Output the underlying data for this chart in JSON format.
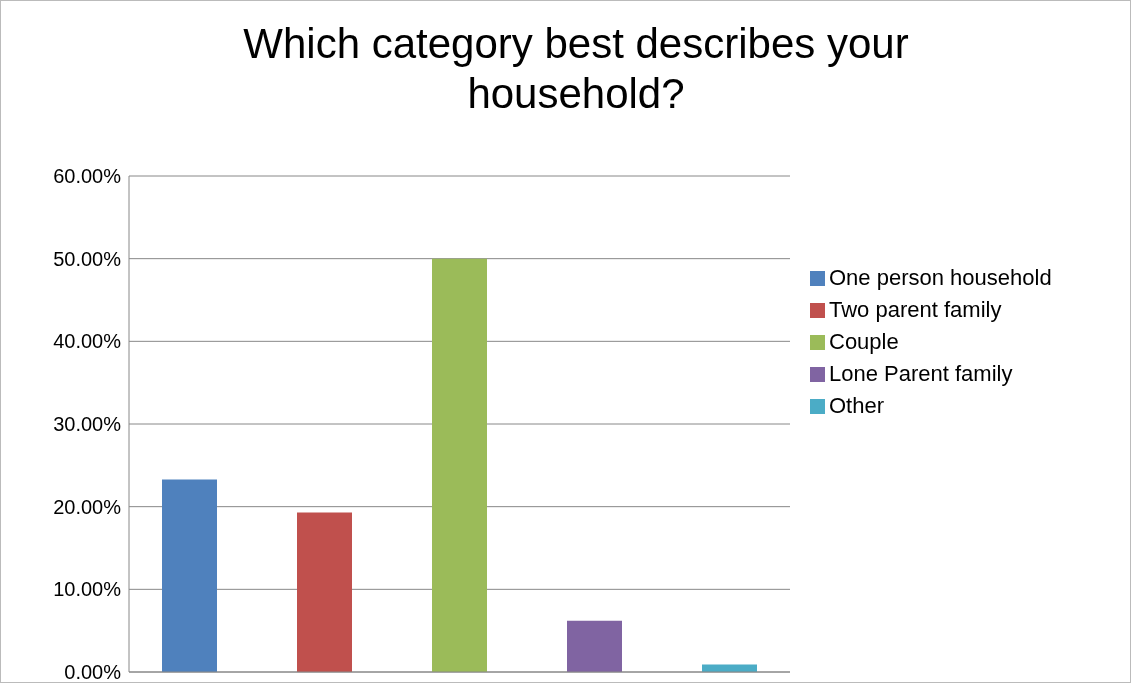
{
  "chart_data": {
    "type": "bar",
    "title": "Which category best describes your household?",
    "categories": [
      null
    ],
    "series": [
      {
        "name": "One person household",
        "color": "#4f81bd",
        "values": [
          23.3
        ]
      },
      {
        "name": "Two parent family",
        "color": "#c0504d",
        "values": [
          19.3
        ]
      },
      {
        "name": "Couple",
        "color": "#9bbb59",
        "values": [
          50.0
        ]
      },
      {
        "name": "Lone Parent family",
        "color": "#8064a2",
        "values": [
          6.2
        ]
      },
      {
        "name": "Other",
        "color": "#4bacc6",
        "values": [
          0.9
        ]
      }
    ],
    "ylim": [
      0,
      60
    ],
    "yticks": [
      {
        "value": 0,
        "label": "0.00%"
      },
      {
        "value": 10,
        "label": "10.00%"
      },
      {
        "value": 20,
        "label": "20.00%"
      },
      {
        "value": 30,
        "label": "30.00%"
      },
      {
        "value": 40,
        "label": "40.00%"
      },
      {
        "value": 50,
        "label": "50.00%"
      },
      {
        "value": 60,
        "label": "60.00%"
      }
    ],
    "grid": "y",
    "legend": "right"
  }
}
